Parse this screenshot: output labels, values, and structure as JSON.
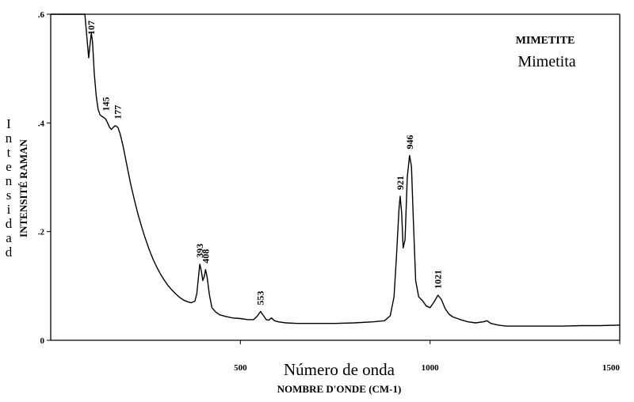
{
  "chart_data": {
    "type": "line",
    "title": "MIMETITE",
    "subtitle": "Mimetita",
    "xlabel": "NOMBRE D'ONDE (CM-1)",
    "xlabel_es": "Número de onda",
    "ylabel": "INTENSITÉ RAMAN",
    "ylabel_es": "Intensidad",
    "xlim": [
      0,
      1500
    ],
    "ylim": [
      0,
      0.6
    ],
    "x_ticks": [
      {
        "value": 500,
        "label": "500"
      },
      {
        "value": 1000,
        "label": "1000"
      },
      {
        "value": 1500,
        "label": "1500"
      }
    ],
    "y_ticks": [
      {
        "value": 0,
        "label": "0"
      },
      {
        "value": 0.2,
        "label": ".2"
      },
      {
        "value": 0.4,
        "label": ".4"
      },
      {
        "value": 0.6,
        "label": ".6"
      }
    ],
    "grid": false,
    "peaks": [
      {
        "x": 107,
        "y": 0.565,
        "label": "107"
      },
      {
        "x": 145,
        "y": 0.41,
        "label": "145"
      },
      {
        "x": 177,
        "y": 0.395,
        "label": "177"
      },
      {
        "x": 393,
        "y": 0.14,
        "label": "393"
      },
      {
        "x": 408,
        "y": 0.13,
        "label": "408"
      },
      {
        "x": 553,
        "y": 0.053,
        "label": "553"
      },
      {
        "x": 921,
        "y": 0.265,
        "label": "921"
      },
      {
        "x": 946,
        "y": 0.34,
        "label": "946"
      },
      {
        "x": 1021,
        "y": 0.083,
        "label": "1021"
      }
    ],
    "series": [
      {
        "x": [
          0,
          5,
          10,
          15,
          20,
          25,
          30,
          35,
          40,
          45,
          50,
          55,
          60,
          70,
          80,
          90,
          100,
          103,
          107,
          110,
          115,
          120,
          125,
          130,
          135,
          140,
          145,
          150,
          155,
          160,
          165,
          170,
          177,
          183,
          190,
          200,
          210,
          220,
          230,
          240,
          250,
          260,
          270,
          280,
          290,
          300,
          310,
          320,
          330,
          340,
          350,
          360,
          370,
          380,
          385,
          390,
          393,
          397,
          401,
          405,
          408,
          412,
          418,
          425,
          435,
          445,
          460,
          480,
          500,
          520,
          535,
          545,
          553,
          560,
          568,
          575,
          582,
          590,
          600,
          620,
          650,
          700,
          750,
          800,
          850,
          880,
          895,
          905,
          912,
          918,
          921,
          925,
          929,
          934,
          940,
          946,
          951,
          956,
          962,
          970,
          980,
          990,
          1000,
          1010,
          1021,
          1030,
          1040,
          1050,
          1060,
          1080,
          1100,
          1120,
          1140,
          1150,
          1160,
          1180,
          1200,
          1250,
          1300,
          1350,
          1400,
          1450,
          1500
        ],
        "y": [
          0.6,
          0.6,
          0.6,
          0.6,
          0.6,
          0.6,
          0.6,
          0.6,
          0.6,
          0.6,
          0.6,
          0.6,
          0.6,
          0.6,
          0.6,
          0.6,
          0.52,
          0.54,
          0.565,
          0.55,
          0.49,
          0.45,
          0.425,
          0.415,
          0.412,
          0.41,
          0.407,
          0.4,
          0.392,
          0.388,
          0.392,
          0.395,
          0.392,
          0.38,
          0.36,
          0.325,
          0.29,
          0.26,
          0.232,
          0.208,
          0.186,
          0.166,
          0.149,
          0.134,
          0.121,
          0.11,
          0.1,
          0.092,
          0.085,
          0.079,
          0.074,
          0.071,
          0.069,
          0.072,
          0.085,
          0.12,
          0.14,
          0.128,
          0.11,
          0.118,
          0.13,
          0.118,
          0.085,
          0.06,
          0.052,
          0.047,
          0.044,
          0.041,
          0.04,
          0.038,
          0.038,
          0.045,
          0.053,
          0.046,
          0.038,
          0.037,
          0.041,
          0.036,
          0.034,
          0.032,
          0.031,
          0.031,
          0.031,
          0.032,
          0.034,
          0.036,
          0.045,
          0.08,
          0.16,
          0.24,
          0.265,
          0.235,
          0.17,
          0.185,
          0.3,
          0.34,
          0.32,
          0.22,
          0.11,
          0.08,
          0.073,
          0.063,
          0.06,
          0.07,
          0.083,
          0.075,
          0.058,
          0.048,
          0.043,
          0.038,
          0.034,
          0.032,
          0.034,
          0.036,
          0.031,
          0.028,
          0.026,
          0.026,
          0.026,
          0.026,
          0.027,
          0.027,
          0.028
        ]
      }
    ]
  }
}
